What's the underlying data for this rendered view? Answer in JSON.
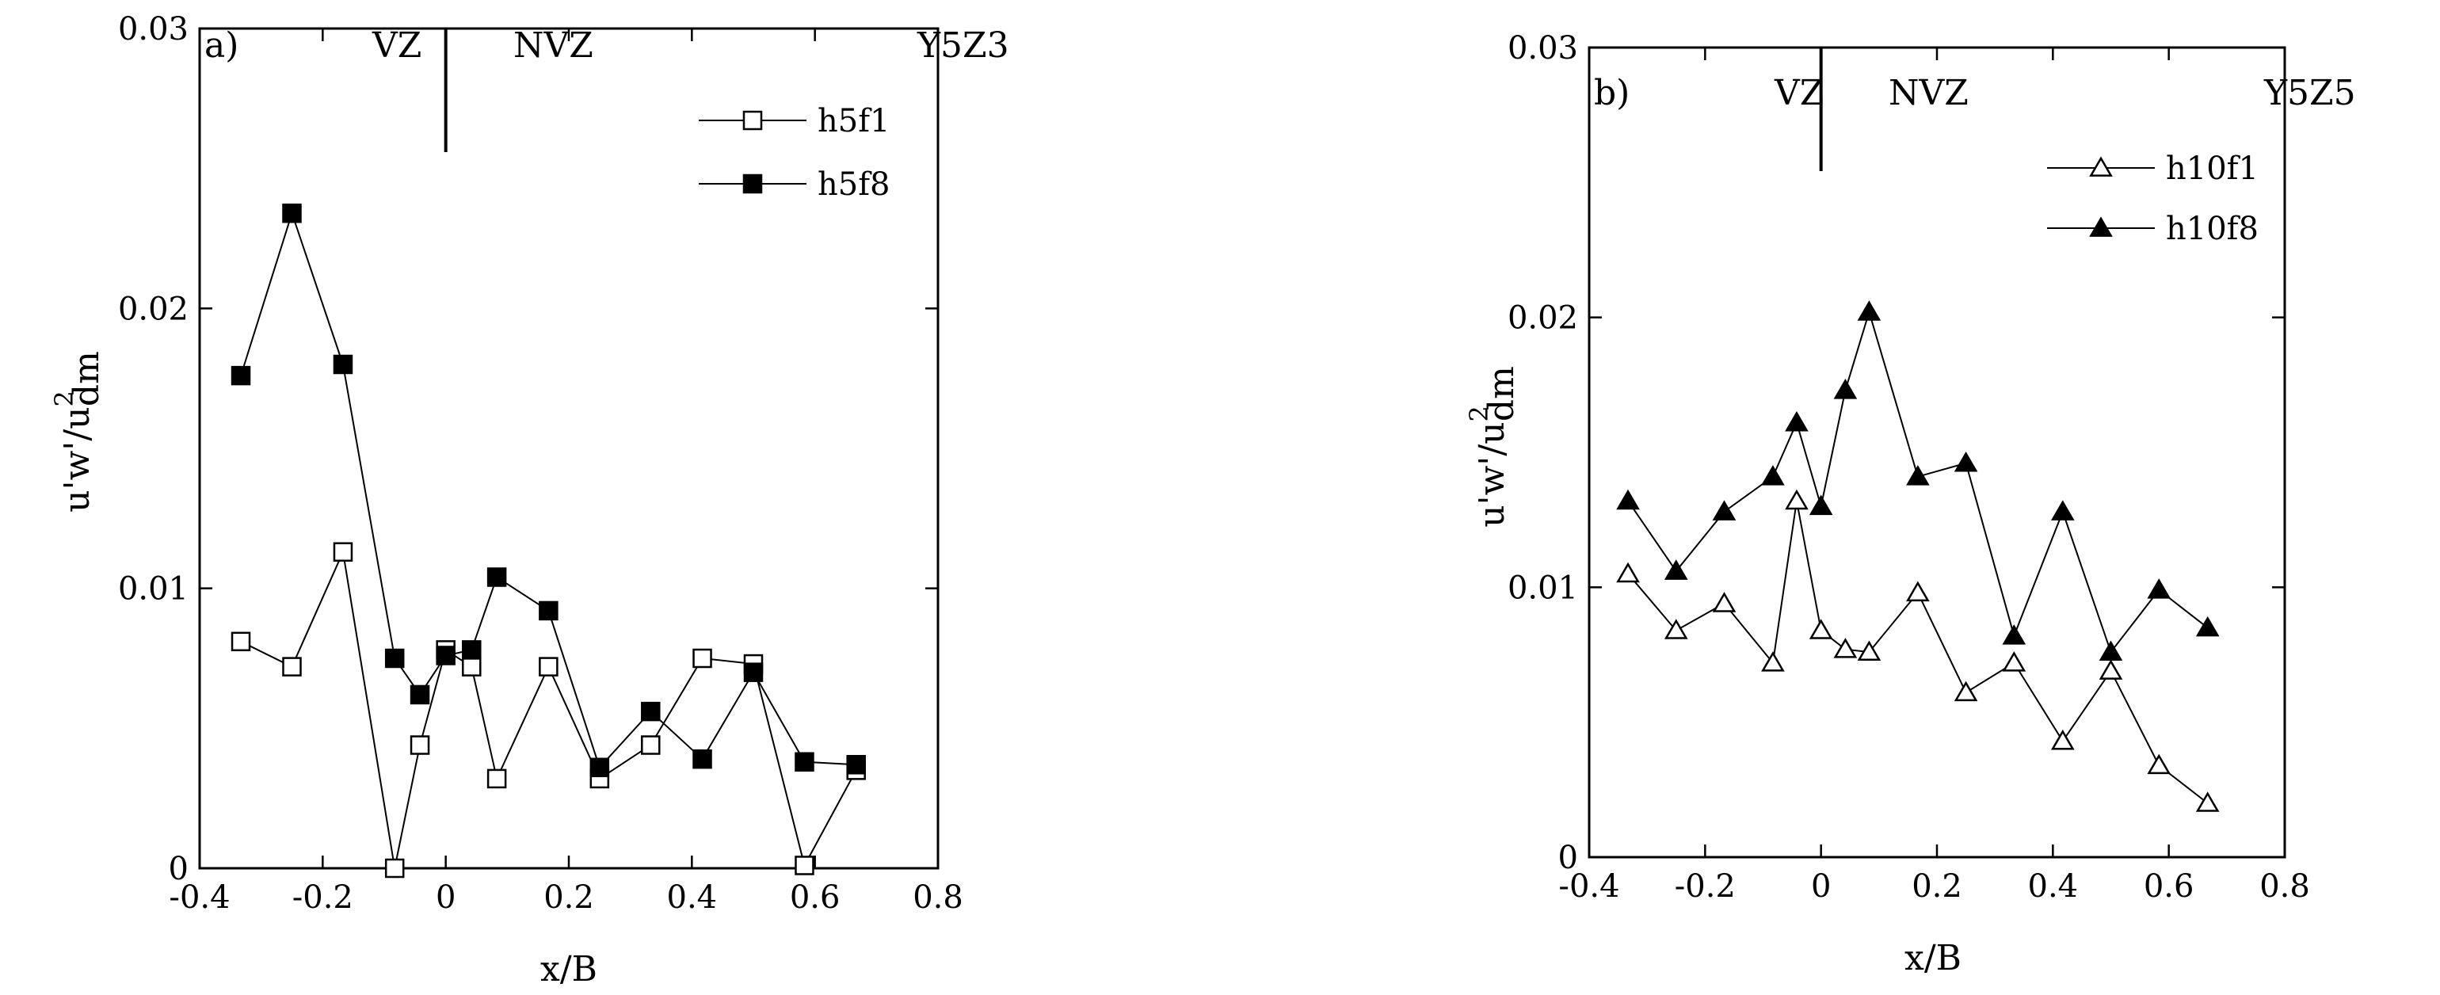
{
  "chart_data": [
    {
      "type": "line",
      "panel_label": "a)",
      "xlabel": "x/B",
      "ylabel": "u'w'/u",
      "ylabel_sup": "2",
      "ylabel_sub": "dm",
      "xlim": [
        -0.4,
        0.8
      ],
      "ylim": [
        0,
        0.03
      ],
      "xticks": [
        -0.4,
        -0.2,
        0,
        0.2,
        0.4,
        0.6,
        0.8
      ],
      "xtick_labels": [
        "-0.4",
        "-0.2",
        "0",
        "0.2",
        "0.4",
        "0.6",
        "0.8"
      ],
      "yticks": [
        0,
        0.01,
        0.02,
        0.03
      ],
      "ytick_labels": [
        "0",
        "0.01",
        "0.02",
        "0.03"
      ],
      "grid": false,
      "legend": "top-right",
      "annotations": {
        "left_zone": "VZ",
        "right_zone": "NVZ",
        "case": "Y5Z3"
      },
      "divider_x": 0,
      "series": [
        {
          "name": "h5f1",
          "marker": "square",
          "filled": false,
          "x": [
            -0.333,
            -0.25,
            -0.167,
            -0.083,
            -0.042,
            0,
            0.042,
            0.083,
            0.167,
            0.25,
            0.333,
            0.417,
            0.5,
            0.583,
            0.667
          ],
          "y": [
            0.0081,
            0.0072,
            0.0113,
            0.0,
            0.0044,
            0.0078,
            0.0072,
            0.0032,
            0.0072,
            0.0032,
            0.0044,
            0.0075,
            0.0073,
            0.0001,
            0.0035
          ]
        },
        {
          "name": "h5f8",
          "marker": "square",
          "filled": true,
          "x": [
            -0.333,
            -0.25,
            -0.167,
            -0.083,
            -0.042,
            0,
            0.042,
            0.083,
            0.167,
            0.25,
            0.333,
            0.417,
            0.5,
            0.583,
            0.667
          ],
          "y": [
            0.0176,
            0.0234,
            0.018,
            0.0075,
            0.0062,
            0.0076,
            0.0078,
            0.0104,
            0.0092,
            0.0036,
            0.0056,
            0.0039,
            0.007,
            0.0038,
            0.0037
          ]
        }
      ]
    },
    {
      "type": "line",
      "panel_label": "b)",
      "xlabel": "x/B",
      "ylabel": "u'w'/u",
      "ylabel_sup": "2",
      "ylabel_sub": "dm",
      "xlim": [
        -0.4,
        0.8
      ],
      "ylim": [
        0,
        0.03
      ],
      "xticks": [
        -0.4,
        -0.2,
        0,
        0.2,
        0.4,
        0.6,
        0.8
      ],
      "xtick_labels": [
        "-0.4",
        "-0.2",
        "0",
        "0.2",
        "0.4",
        "0.6",
        "0.8"
      ],
      "yticks": [
        0,
        0.01,
        0.02,
        0.03
      ],
      "ytick_labels": [
        "0",
        "0.01",
        "0.02",
        "0.03"
      ],
      "grid": false,
      "legend": "top-right",
      "annotations": {
        "left_zone": "VZ",
        "right_zone": "NVZ",
        "case": "Y5Z5"
      },
      "divider_x": 0,
      "series": [
        {
          "name": "h10f1",
          "marker": "triangle",
          "filled": false,
          "x": [
            -0.333,
            -0.25,
            -0.167,
            -0.083,
            -0.042,
            0,
            0.042,
            0.083,
            0.167,
            0.25,
            0.333,
            0.417,
            0.5,
            0.583,
            0.667
          ],
          "y": [
            0.0105,
            0.0084,
            0.0094,
            0.0072,
            0.0132,
            0.0084,
            0.0077,
            0.0076,
            0.0098,
            0.0061,
            0.0072,
            0.0043,
            0.0069,
            0.0034,
            0.002
          ]
        },
        {
          "name": "h10f8",
          "marker": "triangle",
          "filled": true,
          "x": [
            -0.333,
            -0.25,
            -0.167,
            -0.083,
            -0.042,
            0,
            0.042,
            0.083,
            0.167,
            0.25,
            0.333,
            0.417,
            0.5,
            0.583,
            0.667
          ],
          "y": [
            0.0132,
            0.0106,
            0.0128,
            0.0141,
            0.0161,
            0.013,
            0.0173,
            0.0202,
            0.0141,
            0.0146,
            0.0082,
            0.0128,
            0.0076,
            0.0099,
            0.0085
          ]
        }
      ]
    }
  ]
}
